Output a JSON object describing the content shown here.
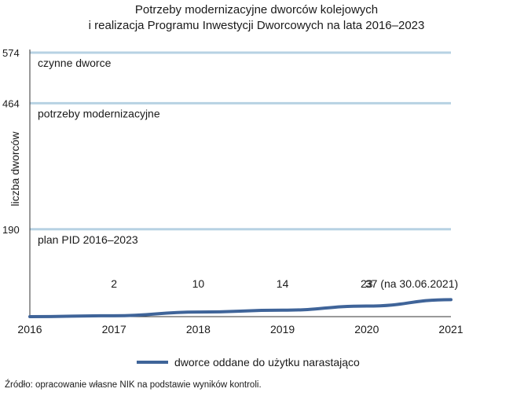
{
  "title_lines": [
    "Potrzeby modernizacyjne dworców kolejowych",
    "i realizacja Programu Inwestycji Dworcowych na lata 2016–2023"
  ],
  "source": "Źródło: opracowanie własne NIK na podstawie wyników kontroli.",
  "colors": {
    "reference_line": "#b7d2e3",
    "series_line": "#3f6499",
    "axis": "#333333"
  },
  "chart_data": {
    "type": "line",
    "title": "Potrzeby modernizacyjne dworców kolejowych i realizacja Programu Inwestycji Dworcowych na lata 2016–2023",
    "xlabel": "",
    "ylabel": "liczba dworców",
    "x": [
      "2016",
      "2017",
      "2018",
      "2019",
      "2020",
      "2021"
    ],
    "xlim": [
      2016,
      2021
    ],
    "ylim": [
      0,
      574
    ],
    "yticks": [
      "190",
      "464",
      "574"
    ],
    "grid": false,
    "legend": "bottom-center",
    "reference_lines": [
      {
        "value": 574,
        "label": "czynne dworce"
      },
      {
        "value": 464,
        "label": "potrzeby modernizacyjne"
      },
      {
        "value": 190,
        "label": "plan PID 2016–2023"
      }
    ],
    "series": [
      {
        "name": "dworce oddane do użytku narastająco",
        "x": [
          2016,
          2017,
          2018,
          2019,
          2020,
          2021
        ],
        "values": [
          0,
          2,
          10,
          14,
          23,
          37
        ]
      }
    ],
    "data_labels": [
      {
        "x": 2017,
        "text": "2"
      },
      {
        "x": 2018,
        "text": "10"
      },
      {
        "x": 2019,
        "text": "14"
      },
      {
        "x": 2020,
        "text": "23"
      },
      {
        "x": 2021,
        "text": "37 (na 30.06.2021)"
      }
    ]
  }
}
